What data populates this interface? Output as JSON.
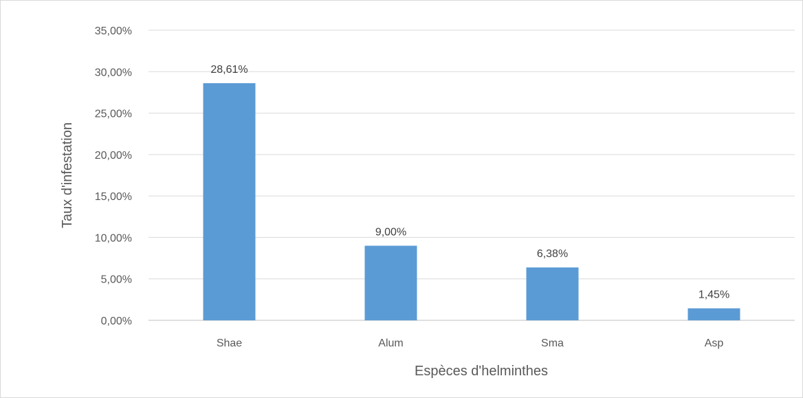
{
  "chart_data": {
    "type": "bar",
    "categories": [
      "Shae",
      "Alum",
      "Sma",
      "Asp"
    ],
    "values": [
      28.61,
      9.0,
      6.38,
      1.45
    ],
    "data_labels": [
      "28,61%",
      "9,00%",
      "6,38%",
      "1,45%"
    ],
    "xlabel": "Espèces d'helminthes",
    "ylabel": "Taux d'infestation",
    "ylim": [
      0,
      35
    ],
    "yticks": [
      0,
      5,
      10,
      15,
      20,
      25,
      30,
      35
    ],
    "ytick_labels": [
      "0,00%",
      "5,00%",
      "10,00%",
      "15,00%",
      "20,00%",
      "25,00%",
      "30,00%",
      "35,00%"
    ],
    "grid": true,
    "legend": "none",
    "bar_color": "#5b9bd5"
  }
}
